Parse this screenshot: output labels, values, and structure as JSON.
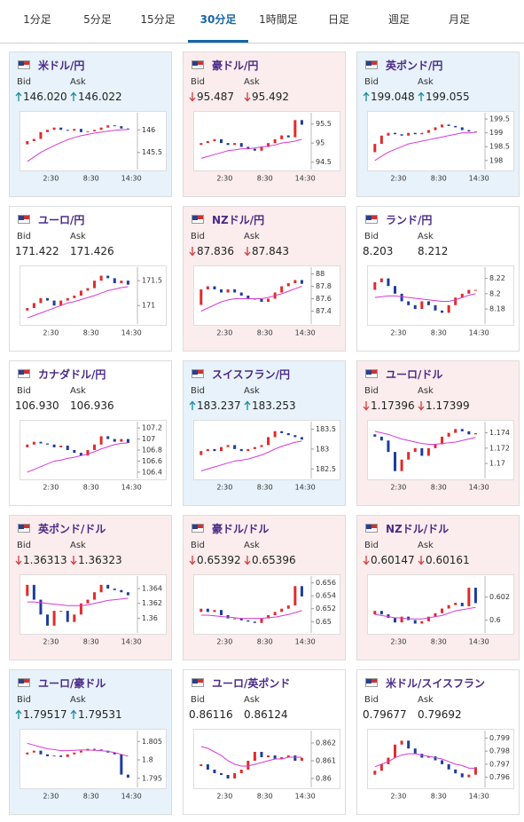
{
  "tabs": {
    "items": [
      "1分足",
      "5分足",
      "15分足",
      "30分足",
      "1時間足",
      "日足",
      "週足",
      "月足"
    ],
    "active": 3
  },
  "labels": {
    "bid": "Bid",
    "ask": "Ask"
  },
  "style": {
    "up_color": "#e02b2b",
    "down_color": "#1d3d9c",
    "ma_color": "#d63ad6",
    "up_bg": "#e7f2fb",
    "down_bg": "#fbeded",
    "none_bg": "#ffffff",
    "arrow_up": "#1a8a9a",
    "arrow_down": "#d33a3a"
  },
  "chart_axis": {
    "xlim": [
      0,
      16.5
    ],
    "xticks": [
      {
        "value": 4,
        "label": "2:30"
      },
      {
        "value": 10,
        "label": "8:30"
      },
      {
        "value": 16,
        "label": "14:30"
      }
    ]
  },
  "cards": [
    {
      "pair": "米ドル/円",
      "bid": "146.020",
      "ask": "146.022",
      "trend": "up",
      "chart": {
        "type": "candlestick",
        "ylim": [
          145.2,
          146.3
        ],
        "yticks": [
          146,
          145.5
        ],
        "open": 145.68,
        "closes": [
          145.75,
          145.8,
          145.95,
          146.0,
          146.05,
          146.0,
          145.98,
          146.02,
          145.95,
          145.97,
          146.0,
          146.05,
          146.1,
          146.08,
          146.03,
          146.02
        ],
        "ma": [
          145.3,
          145.4,
          145.5,
          145.58,
          145.65,
          145.72,
          145.78,
          145.83,
          145.87,
          145.9,
          145.93,
          145.95,
          145.97,
          145.99,
          146.0,
          146.01
        ]
      }
    },
    {
      "pair": "豪ドル/円",
      "bid": "95.487",
      "ask": "95.492",
      "trend": "down",
      "chart": {
        "type": "candlestick",
        "ylim": [
          94.4,
          95.7
        ],
        "yticks": [
          95.5,
          95,
          94.5
        ],
        "open": 94.95,
        "closes": [
          95.0,
          95.05,
          95.1,
          95.0,
          94.95,
          95.0,
          94.9,
          94.85,
          94.8,
          94.9,
          95.0,
          95.1,
          95.2,
          95.15,
          95.6,
          95.48
        ],
        "ma": [
          94.6,
          94.65,
          94.7,
          94.75,
          94.8,
          94.82,
          94.85,
          94.85,
          94.87,
          94.9,
          94.92,
          94.95,
          95.0,
          95.02,
          95.05,
          95.1
        ]
      }
    },
    {
      "pair": "英ポンド/円",
      "bid": "199.048",
      "ask": "199.055",
      "trend": "up",
      "chart": {
        "type": "candlestick",
        "ylim": [
          197.8,
          199.6
        ],
        "yticks": [
          199.5,
          199,
          198.5,
          198
        ],
        "open": 198.3,
        "closes": [
          198.6,
          198.9,
          199.0,
          198.95,
          198.9,
          199.0,
          198.95,
          199.0,
          199.1,
          199.2,
          199.3,
          199.25,
          199.2,
          199.1,
          199.05,
          199.05
        ],
        "ma": [
          198.0,
          198.15,
          198.3,
          198.4,
          198.5,
          198.6,
          198.65,
          198.7,
          198.75,
          198.8,
          198.85,
          198.9,
          198.95,
          199.0,
          199.0,
          199.02
        ]
      }
    },
    {
      "pair": "ユーロ/円",
      "bid": "171.422",
      "ask": "171.426",
      "trend": "none",
      "chart": {
        "type": "candlestick",
        "ylim": [
          170.7,
          171.7
        ],
        "yticks": [
          171.5,
          171
        ],
        "open": 170.9,
        "closes": [
          170.95,
          171.05,
          171.15,
          171.1,
          171.0,
          171.1,
          171.15,
          171.2,
          171.3,
          171.35,
          171.5,
          171.6,
          171.55,
          171.45,
          171.5,
          171.42
        ],
        "ma": [
          170.75,
          170.8,
          170.85,
          170.9,
          170.95,
          171.0,
          171.05,
          171.08,
          171.12,
          171.16,
          171.2,
          171.25,
          171.3,
          171.33,
          171.36,
          171.38
        ]
      }
    },
    {
      "pair": "NZドル/円",
      "bid": "87.836",
      "ask": "87.843",
      "trend": "down",
      "chart": {
        "type": "candlestick",
        "ylim": [
          87.25,
          88.05
        ],
        "yticks": [
          88,
          87.8,
          87.6,
          87.4
        ],
        "open": 87.5,
        "closes": [
          87.75,
          87.8,
          87.75,
          87.7,
          87.75,
          87.7,
          87.65,
          87.6,
          87.6,
          87.55,
          87.6,
          87.7,
          87.8,
          87.85,
          87.9,
          87.84
        ],
        "ma": [
          87.4,
          87.45,
          87.5,
          87.55,
          87.58,
          87.6,
          87.6,
          87.6,
          87.6,
          87.6,
          87.62,
          87.65,
          87.68,
          87.72,
          87.76,
          87.8
        ]
      }
    },
    {
      "pair": "ランド/円",
      "bid": "8.203",
      "ask": "8.212",
      "trend": "none",
      "chart": {
        "type": "candlestick",
        "ylim": [
          8.165,
          8.23
        ],
        "yticks": [
          8.22,
          8.2,
          8.18
        ],
        "open": 8.205,
        "closes": [
          8.215,
          8.22,
          8.21,
          8.2,
          8.19,
          8.185,
          8.18,
          8.19,
          8.185,
          8.178,
          8.175,
          8.185,
          8.195,
          8.2,
          8.205,
          8.205
        ],
        "ma": [
          8.195,
          8.196,
          8.197,
          8.197,
          8.196,
          8.195,
          8.194,
          8.193,
          8.192,
          8.191,
          8.19,
          8.19,
          8.192,
          8.195,
          8.198,
          8.2
        ]
      }
    },
    {
      "pair": "カナダドル/円",
      "bid": "106.930",
      "ask": "106.936",
      "trend": "none",
      "chart": {
        "type": "candlestick",
        "ylim": [
          106.35,
          107.25
        ],
        "yticks": [
          107.2,
          107,
          106.8,
          106.6,
          106.4
        ],
        "open": 106.85,
        "closes": [
          106.9,
          106.95,
          106.92,
          106.9,
          106.85,
          106.88,
          106.8,
          106.75,
          106.7,
          106.8,
          106.9,
          107.05,
          107.0,
          106.95,
          107.0,
          106.93
        ],
        "ma": [
          106.4,
          106.45,
          106.5,
          106.55,
          106.6,
          106.62,
          106.65,
          106.67,
          106.7,
          106.73,
          106.77,
          106.82,
          106.86,
          106.9,
          106.92,
          106.93
        ]
      }
    },
    {
      "pair": "スイスフラン/円",
      "bid": "183.237",
      "ask": "183.253",
      "trend": "up",
      "chart": {
        "type": "candlestick",
        "ylim": [
          182.35,
          183.6
        ],
        "yticks": [
          183.5,
          183,
          182.5
        ],
        "open": 182.85,
        "closes": [
          182.95,
          183.0,
          182.95,
          183.05,
          183.1,
          183.0,
          182.95,
          183.0,
          183.05,
          183.1,
          183.3,
          183.45,
          183.4,
          183.35,
          183.3,
          183.24
        ],
        "ma": [
          182.45,
          182.5,
          182.55,
          182.6,
          182.65,
          182.7,
          182.72,
          182.75,
          182.8,
          182.85,
          182.92,
          183.0,
          183.07,
          183.12,
          183.17,
          183.2
        ]
      }
    },
    {
      "pair": "ユーロ/ドル",
      "bid": "1.17396",
      "ask": "1.17399",
      "trend": "down",
      "chart": {
        "type": "candlestick",
        "ylim": [
          1.1685,
          1.175
        ],
        "yticks": [
          1.174,
          1.172,
          1.17
        ],
        "open": 1.1738,
        "closes": [
          1.1735,
          1.173,
          1.1715,
          1.169,
          1.1705,
          1.1715,
          1.172,
          1.171,
          1.172,
          1.1725,
          1.1735,
          1.174,
          1.1745,
          1.1742,
          1.1738,
          1.17396
        ],
        "ma": [
          1.1742,
          1.174,
          1.1738,
          1.1735,
          1.1732,
          1.173,
          1.1728,
          1.1726,
          1.1725,
          1.1725,
          1.1726,
          1.1727,
          1.1728,
          1.173,
          1.1732,
          1.1734
        ]
      }
    },
    {
      "pair": "英ポンド/ドル",
      "bid": "1.36313",
      "ask": "1.36323",
      "trend": "down",
      "chart": {
        "type": "candlestick",
        "ylim": [
          1.3585,
          1.3652
        ],
        "yticks": [
          1.364,
          1.362,
          1.36
        ],
        "open": 1.363,
        "closes": [
          1.3645,
          1.3625,
          1.3605,
          1.359,
          1.361,
          1.361,
          1.3595,
          1.3605,
          1.362,
          1.3625,
          1.3635,
          1.3645,
          1.364,
          1.3638,
          1.3635,
          1.3631
        ],
        "ma": [
          1.3622,
          1.3622,
          1.3621,
          1.362,
          1.3619,
          1.3618,
          1.3617,
          1.3617,
          1.3617,
          1.3618,
          1.362,
          1.3622,
          1.3624,
          1.3625,
          1.3626,
          1.3627
        ]
      }
    },
    {
      "pair": "豪ドル/ドル",
      "bid": "0.65392",
      "ask": "0.65396",
      "trend": "down",
      "chart": {
        "type": "candlestick",
        "ylim": [
          0.6488,
          0.6565
        ],
        "yticks": [
          0.656,
          0.654,
          0.652,
          0.65
        ],
        "open": 0.6515,
        "closes": [
          0.652,
          0.6515,
          0.6518,
          0.651,
          0.6505,
          0.6505,
          0.6502,
          0.65,
          0.6498,
          0.6505,
          0.651,
          0.6515,
          0.652,
          0.6525,
          0.6555,
          0.6539
        ],
        "ma": [
          0.651,
          0.651,
          0.6509,
          0.6508,
          0.6507,
          0.6506,
          0.6505,
          0.6505,
          0.6505,
          0.6505,
          0.6506,
          0.6507,
          0.6509,
          0.6511,
          0.6514,
          0.6517
        ]
      }
    },
    {
      "pair": "NZドル/ドル",
      "bid": "0.60147",
      "ask": "0.60161",
      "trend": "down",
      "chart": {
        "type": "candlestick",
        "ylim": [
          0.5992,
          0.6035
        ],
        "yticks": [
          0.602,
          0.6
        ],
        "open": 0.6005,
        "closes": [
          0.6008,
          0.6005,
          0.6002,
          0.5998,
          0.6003,
          0.6,
          0.5997,
          0.5999,
          0.6003,
          0.6006,
          0.601,
          0.6013,
          0.6015,
          0.6012,
          0.6028,
          0.60147
        ],
        "ma": [
          0.6005,
          0.6004,
          0.6003,
          0.6002,
          0.6002,
          0.6001,
          0.6001,
          0.6001,
          0.6002,
          0.6003,
          0.6004,
          0.6006,
          0.6008,
          0.6009,
          0.601,
          0.6011
        ]
      }
    },
    {
      "pair": "ユーロ/豪ドル",
      "bid": "1.79517",
      "ask": "1.79531",
      "trend": "up",
      "chart": {
        "type": "candlestick",
        "ylim": [
          1.7935,
          1.807
        ],
        "yticks": [
          1.805,
          1.8,
          1.795
        ],
        "open": 1.8015,
        "closes": [
          1.802,
          1.8025,
          1.8015,
          1.801,
          1.8012,
          1.8008,
          1.8015,
          1.802,
          1.8025,
          1.803,
          1.8028,
          1.8025,
          1.802,
          1.8015,
          1.796,
          1.7952
        ],
        "ma": [
          1.8045,
          1.804,
          1.8035,
          1.803,
          1.8028,
          1.8025,
          1.8025,
          1.8026,
          1.8027,
          1.8027,
          1.8026,
          1.8025,
          1.8023,
          1.802,
          1.8015,
          1.801
        ]
      }
    },
    {
      "pair": "ユーロ/英ポンド",
      "bid": "0.86116",
      "ask": "0.86124",
      "trend": "none",
      "chart": {
        "type": "candlestick",
        "ylim": [
          0.8597,
          0.8625
        ],
        "yticks": [
          0.862,
          0.861,
          0.86
        ],
        "open": 0.8607,
        "closes": [
          0.8608,
          0.8605,
          0.8603,
          0.8602,
          0.86,
          0.8603,
          0.8605,
          0.861,
          0.8615,
          0.8612,
          0.8613,
          0.8611,
          0.8612,
          0.8613,
          0.861,
          0.86116
        ],
        "ma": [
          0.8618,
          0.8617,
          0.8615,
          0.8613,
          0.861,
          0.8608,
          0.8607,
          0.8607,
          0.8608,
          0.8609,
          0.861,
          0.8611,
          0.8611,
          0.8612,
          0.8612,
          0.8612
        ]
      }
    },
    {
      "pair": "米ドル/スイスフラン",
      "bid": "0.79677",
      "ask": "0.79692",
      "trend": "none",
      "chart": {
        "type": "candlestick",
        "ylim": [
          0.7955,
          0.7993
        ],
        "yticks": [
          0.799,
          0.798,
          0.797,
          0.796
        ],
        "open": 0.7962,
        "closes": [
          0.7965,
          0.797,
          0.7975,
          0.7985,
          0.7988,
          0.7982,
          0.7978,
          0.7975,
          0.7976,
          0.7973,
          0.797,
          0.7966,
          0.7963,
          0.796,
          0.7962,
          0.79677
        ],
        "ma": [
          0.7968,
          0.797,
          0.7972,
          0.7975,
          0.7977,
          0.7978,
          0.7978,
          0.7977,
          0.7976,
          0.7975,
          0.7974,
          0.7972,
          0.797,
          0.7969,
          0.7967,
          0.7967
        ]
      }
    }
  ]
}
